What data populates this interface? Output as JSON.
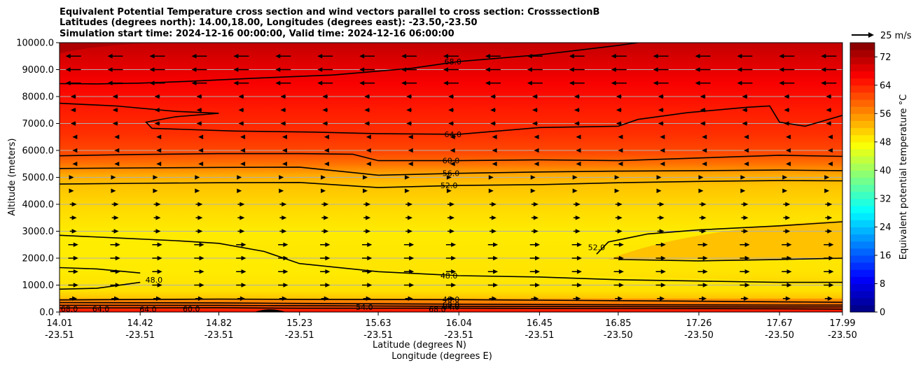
{
  "chart_data": {
    "type": "heatmap",
    "title_lines": [
      "Equivalent Potential Temperature cross section and wind vectors parallel to cross section: CrosssectionB",
      "Latitudes (degrees north): 14.00,18.00, Longitudes (degrees east): -23.50,-23.50",
      "Simulation start time: 2024-12-16 00:00:00, Valid time: 2024-12-16 06:00:00"
    ],
    "xlabel_lines": [
      "Latitude (degrees N)",
      "Longitude (degrees E)"
    ],
    "ylabel": "Altitude (meters)",
    "ylim": [
      0,
      10000
    ],
    "xlim": [
      14.01,
      17.99
    ],
    "y_ticks": [
      {
        "value": 0,
        "label": "0.0"
      },
      {
        "value": 1000,
        "label": "1000.0"
      },
      {
        "value": 2000,
        "label": "2000.0"
      },
      {
        "value": 3000,
        "label": "3000.0"
      },
      {
        "value": 4000,
        "label": "4000.0"
      },
      {
        "value": 5000,
        "label": "5000.0"
      },
      {
        "value": 6000,
        "label": "6000.0"
      },
      {
        "value": 7000,
        "label": "7000.0"
      },
      {
        "value": 8000,
        "label": "8000.0"
      },
      {
        "value": 9000,
        "label": "9000.0"
      },
      {
        "value": 10000,
        "label": "10000.0"
      }
    ],
    "x_ticks": [
      {
        "value": 14.01,
        "lat": "14.01",
        "lon": "-23.51"
      },
      {
        "value": 14.42,
        "lat": "14.42",
        "lon": "-23.51"
      },
      {
        "value": 14.82,
        "lat": "14.82",
        "lon": "-23.51"
      },
      {
        "value": 15.23,
        "lat": "15.23",
        "lon": "-23.51"
      },
      {
        "value": 15.63,
        "lat": "15.63",
        "lon": "-23.51"
      },
      {
        "value": 16.04,
        "lat": "16.04",
        "lon": "-23.51"
      },
      {
        "value": 16.45,
        "lat": "16.45",
        "lon": "-23.51"
      },
      {
        "value": 16.85,
        "lat": "16.85",
        "lon": "-23.50"
      },
      {
        "value": 17.26,
        "lat": "17.26",
        "lon": "-23.50"
      },
      {
        "value": 17.67,
        "lat": "17.67",
        "lon": "-23.50"
      },
      {
        "value": 17.99,
        "lat": "17.99",
        "lon": "-23.50"
      }
    ],
    "colorbar": {
      "label": "Equivalent potential temperature $^\\circ$C",
      "label_text": "Equivalent potential temperature °C",
      "min": 0,
      "max": 76,
      "ticks": [
        "0",
        "8",
        "16",
        "24",
        "32",
        "40",
        "48",
        "56",
        "64",
        "72"
      ],
      "colormap": "jet"
    },
    "quiver_key": {
      "label": "25 m/s",
      "value": 25
    },
    "contour_labels": [
      {
        "text": "68.0",
        "x": 16.01,
        "y": 9300
      },
      {
        "text": "64.0",
        "x": 16.01,
        "y": 6600
      },
      {
        "text": "60.0",
        "x": 16.0,
        "y": 5620
      },
      {
        "text": "56.0",
        "x": 16.0,
        "y": 5150
      },
      {
        "text": "52.0",
        "x": 15.99,
        "y": 4700
      },
      {
        "text": "52.0",
        "x": 16.74,
        "y": 2400
      },
      {
        "text": "48.0",
        "x": 15.99,
        "y": 1350
      },
      {
        "text": "48.0",
        "x": 14.49,
        "y": 1200
      },
      {
        "text": "48.0",
        "x": 16.0,
        "y": 470
      },
      {
        "text": "60.0",
        "x": 16.0,
        "y": 270
      },
      {
        "text": "64.0",
        "x": 16.0,
        "y": 200
      },
      {
        "text": "68.0",
        "x": 14.06,
        "y": 120
      },
      {
        "text": "64.0",
        "x": 14.22,
        "y": 120
      },
      {
        "text": "64.0",
        "x": 14.46,
        "y": 110
      },
      {
        "text": "60.0",
        "x": 14.68,
        "y": 120
      },
      {
        "text": "54.0",
        "x": 15.56,
        "y": 180
      },
      {
        "text": "68.0",
        "x": 15.93,
        "y": 110
      }
    ],
    "contours": [
      {
        "level": 68,
        "points": [
          [
            14.01,
            8480
          ],
          [
            14.2,
            8470
          ],
          [
            14.42,
            8500
          ],
          [
            14.65,
            8560
          ],
          [
            15.0,
            8680
          ],
          [
            15.4,
            8800
          ],
          [
            15.8,
            9050
          ],
          [
            16.04,
            9300
          ],
          [
            16.45,
            9550
          ],
          [
            16.85,
            9900
          ],
          [
            16.95,
            10000
          ]
        ]
      },
      {
        "level": 64,
        "points": [
          [
            14.01,
            7750
          ],
          [
            14.3,
            7650
          ],
          [
            14.6,
            7450
          ],
          [
            14.82,
            7380
          ],
          [
            14.6,
            7250
          ],
          [
            14.45,
            7050
          ],
          [
            14.48,
            6820
          ],
          [
            14.9,
            6720
          ],
          [
            15.3,
            6680
          ],
          [
            15.63,
            6620
          ],
          [
            16.04,
            6600
          ],
          [
            16.45,
            6850
          ],
          [
            16.85,
            6900
          ],
          [
            16.95,
            7150
          ],
          [
            17.2,
            7400
          ],
          [
            17.5,
            7600
          ],
          [
            17.62,
            7650
          ],
          [
            17.67,
            7050
          ],
          [
            17.8,
            6900
          ],
          [
            17.99,
            7300
          ]
        ]
      },
      {
        "level": 60,
        "points": [
          [
            14.01,
            5800
          ],
          [
            14.4,
            5850
          ],
          [
            14.82,
            5880
          ],
          [
            15.23,
            5880
          ],
          [
            15.5,
            5860
          ],
          [
            15.63,
            5620
          ],
          [
            16.04,
            5620
          ],
          [
            16.45,
            5650
          ],
          [
            16.85,
            5620
          ],
          [
            17.26,
            5720
          ],
          [
            17.67,
            5820
          ],
          [
            17.99,
            5780
          ]
        ]
      },
      {
        "level": 56,
        "points": [
          [
            14.01,
            5330
          ],
          [
            14.42,
            5350
          ],
          [
            14.82,
            5370
          ],
          [
            15.23,
            5380
          ],
          [
            15.63,
            5080
          ],
          [
            16.04,
            5150
          ],
          [
            16.45,
            5200
          ],
          [
            16.85,
            5230
          ],
          [
            17.26,
            5250
          ],
          [
            17.67,
            5270
          ],
          [
            17.99,
            5250
          ]
        ]
      },
      {
        "level": 52,
        "points": [
          [
            14.01,
            4750
          ],
          [
            14.42,
            4780
          ],
          [
            14.82,
            4800
          ],
          [
            15.23,
            4810
          ],
          [
            15.63,
            4620
          ],
          [
            16.04,
            4700
          ],
          [
            16.45,
            4730
          ],
          [
            16.85,
            4800
          ],
          [
            17.26,
            4850
          ],
          [
            17.67,
            4880
          ],
          [
            17.99,
            4870
          ]
        ]
      },
      {
        "level": 52,
        "points": [
          [
            16.74,
            2150
          ],
          [
            16.8,
            2600
          ],
          [
            17.0,
            2900
          ],
          [
            17.26,
            3050
          ],
          [
            17.67,
            3200
          ],
          [
            17.99,
            3350
          ]
        ]
      },
      {
        "level": 52,
        "points": [
          [
            16.85,
            1950
          ],
          [
            17.26,
            1900
          ],
          [
            17.67,
            1950
          ],
          [
            17.99,
            2000
          ]
        ]
      },
      {
        "level": 48,
        "points": [
          [
            14.01,
            2850
          ],
          [
            14.3,
            2750
          ],
          [
            14.6,
            2650
          ],
          [
            14.82,
            2550
          ],
          [
            15.05,
            2250
          ],
          [
            15.23,
            1800
          ],
          [
            15.63,
            1500
          ],
          [
            16.04,
            1350
          ],
          [
            16.45,
            1300
          ],
          [
            16.85,
            1200
          ],
          [
            17.26,
            1150
          ],
          [
            17.67,
            1100
          ],
          [
            17.99,
            1100
          ]
        ]
      },
      {
        "level": 48,
        "points": [
          [
            14.01,
            1650
          ],
          [
            14.2,
            1600
          ],
          [
            14.42,
            1450
          ]
        ]
      },
      {
        "level": 48,
        "points": [
          [
            14.01,
            850
          ],
          [
            14.2,
            880
          ],
          [
            14.42,
            1100
          ]
        ]
      },
      {
        "level": 48,
        "points": [
          [
            14.01,
            450
          ],
          [
            14.82,
            480
          ],
          [
            15.23,
            470
          ],
          [
            16.04,
            460
          ],
          [
            16.85,
            420
          ],
          [
            17.67,
            380
          ],
          [
            17.99,
            360
          ]
        ]
      },
      {
        "level": 60,
        "points": [
          [
            14.01,
            350
          ],
          [
            14.82,
            340
          ],
          [
            15.23,
            320
          ],
          [
            16.04,
            290
          ],
          [
            16.85,
            270
          ],
          [
            17.67,
            260
          ],
          [
            17.99,
            260
          ]
        ]
      },
      {
        "level": 64,
        "points": [
          [
            14.01,
            250
          ],
          [
            14.82,
            250
          ],
          [
            15.1,
            240
          ],
          [
            15.4,
            230
          ],
          [
            16.04,
            210
          ],
          [
            16.85,
            200
          ],
          [
            17.67,
            190
          ],
          [
            17.99,
            190
          ]
        ]
      },
      {
        "level": 68,
        "points": [
          [
            14.01,
            150
          ],
          [
            14.82,
            160
          ],
          [
            15.23,
            140
          ],
          [
            16.04,
            140
          ],
          [
            16.85,
            130
          ],
          [
            17.67,
            120
          ],
          [
            17.99,
            110
          ]
        ]
      }
    ]
  }
}
